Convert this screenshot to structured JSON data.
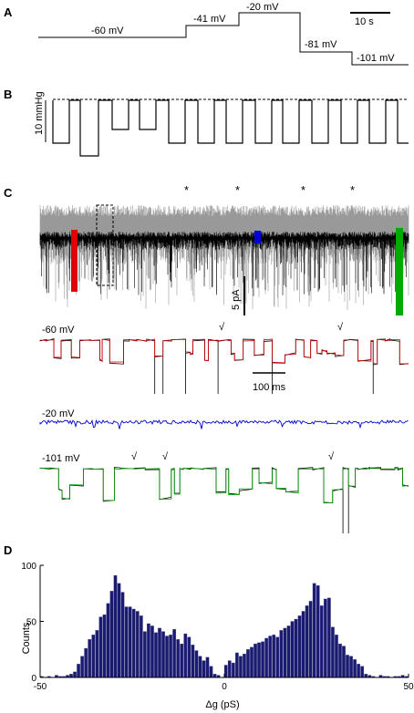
{
  "panels": {
    "a": "A",
    "b": "B",
    "c": "C",
    "d": "D"
  },
  "panel_a": {
    "steps": [
      "-60 mV",
      "-41 mV",
      "-20 mV",
      "-81 mV",
      "-101 mV"
    ],
    "scalebar": "10 s"
  },
  "panel_b": {
    "ylabel": "10 mmHg"
  },
  "panel_c": {
    "asterisks": [
      "*",
      "*",
      "*",
      "*"
    ],
    "current_scale": "5 pA",
    "time_scale": "100 ms",
    "traces": [
      {
        "label": "-60 mV",
        "color": "#cc0000"
      },
      {
        "label": "-20 mV",
        "color": "#0000cc"
      },
      {
        "label": "-101 mV",
        "color": "#009900"
      }
    ],
    "check_marks": [
      "√",
      "√",
      "√",
      "√",
      "√",
      "√"
    ]
  },
  "colors": {
    "gray_trace": "#999999",
    "black_trace": "#000000",
    "bars": "#1a1a6e"
  },
  "chart_data": {
    "type": "bar",
    "title": "",
    "xlabel": "Δg (pS)",
    "ylabel": "Counts",
    "xlim": [
      -50,
      50
    ],
    "ylim": [
      0,
      100
    ],
    "xticks": [
      "-50",
      "0",
      "50"
    ],
    "yticks": [
      "0",
      "50",
      "100"
    ],
    "bin_width": 1,
    "x": [
      -50,
      -49,
      -48,
      -47,
      -46,
      -45,
      -44,
      -43,
      -42,
      -41,
      -40,
      -39,
      -38,
      -37,
      -36,
      -35,
      -34,
      -33,
      -32,
      -31,
      -30,
      -29,
      -28,
      -27,
      -26,
      -25,
      -24,
      -23,
      -22,
      -21,
      -20,
      -19,
      -18,
      -17,
      -16,
      -15,
      -14,
      -13,
      -12,
      -11,
      -10,
      -9,
      -8,
      -7,
      -6,
      -5,
      -4,
      -3,
      -2,
      -1,
      0,
      1,
      2,
      3,
      4,
      5,
      6,
      7,
      8,
      9,
      10,
      11,
      12,
      13,
      14,
      15,
      16,
      17,
      18,
      19,
      20,
      21,
      22,
      23,
      24,
      25,
      26,
      27,
      28,
      29,
      30,
      31,
      32,
      33,
      34,
      35,
      36,
      37,
      38,
      39,
      40,
      41,
      42,
      43,
      44,
      45,
      46,
      47,
      48,
      49
    ],
    "values": [
      1,
      0,
      1,
      0,
      2,
      1,
      1,
      2,
      3,
      5,
      12,
      19,
      26,
      34,
      38,
      42,
      54,
      56,
      66,
      77,
      91,
      84,
      76,
      63,
      63,
      61,
      59,
      55,
      41,
      48,
      46,
      40,
      44,
      41,
      37,
      38,
      43,
      34,
      30,
      39,
      36,
      29,
      24,
      19,
      15,
      18,
      10,
      3,
      2,
      0,
      11,
      15,
      13,
      22,
      19,
      21,
      25,
      27,
      30,
      31,
      32,
      35,
      37,
      38,
      36,
      42,
      44,
      46,
      50,
      52,
      55,
      59,
      64,
      68,
      84,
      82,
      64,
      70,
      71,
      45,
      38,
      30,
      28,
      20,
      19,
      16,
      12,
      10,
      3,
      2,
      1,
      0,
      2,
      1,
      1,
      0,
      1,
      1,
      2,
      1
    ]
  }
}
